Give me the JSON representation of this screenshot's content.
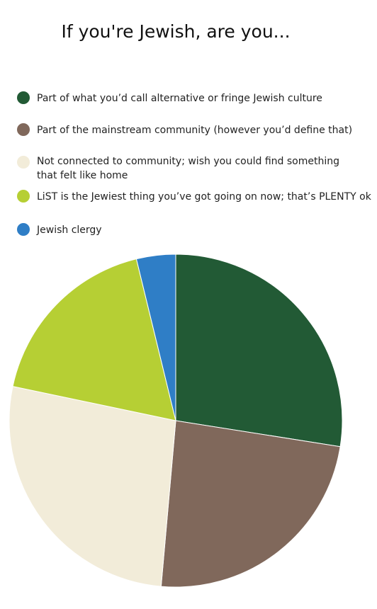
{
  "chart_data": {
    "type": "pie",
    "title": "If you're Jewish, are you...",
    "legend_position": "top",
    "slices": [
      {
        "label": "Part of what you’d call alternative or fringe Jewish culture",
        "value": 27.5,
        "color": "#225a35"
      },
      {
        "label": " Part of the mainstream community (however you’d define that)",
        "value": 23.9,
        "color": "#80685b"
      },
      {
        "label": "Not connected to community; wish you could find something\nthat felt like home",
        "value": 26.9,
        "color": "#f2ecd9"
      },
      {
        "label": " LiST is the Jewiest thing you’ve got going on now; that’s PLENTY ok",
        "value": 17.9,
        "color": "#b6cf34"
      },
      {
        "label": " Jewish clergy",
        "value": 3.8,
        "color": "#2f7ec6"
      }
    ]
  }
}
